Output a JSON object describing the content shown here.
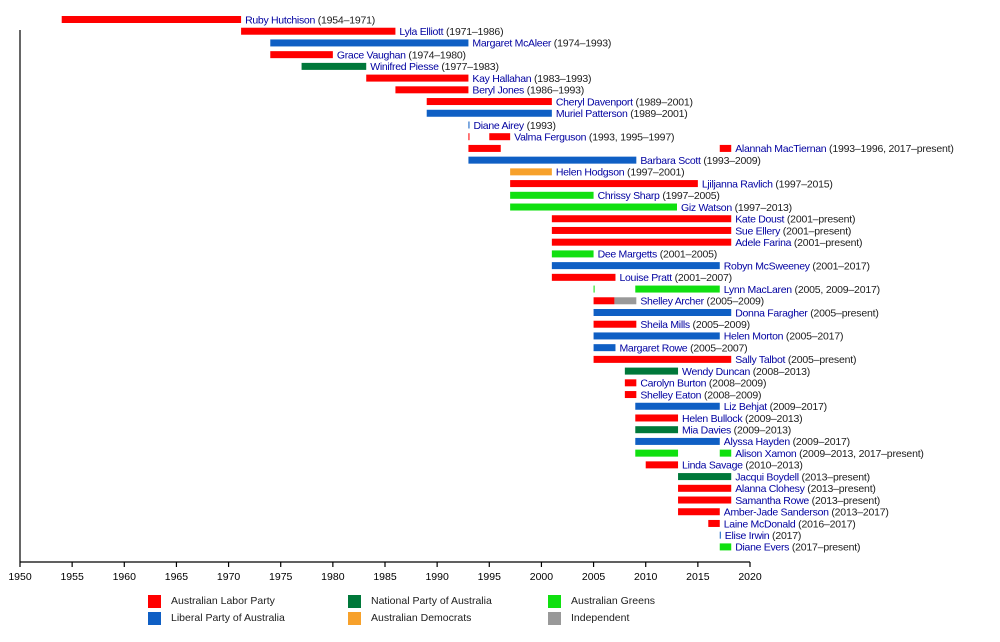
{
  "chart_data": {
    "type": "timeline",
    "title": "",
    "xlabel": "",
    "ylabel": "",
    "xlim": [
      1950,
      2020
    ],
    "present_year": 2018.2,
    "x_ticks": [
      1950,
      1955,
      1960,
      1965,
      1970,
      1975,
      1980,
      1985,
      1990,
      1995,
      2000,
      2005,
      2010,
      2015,
      2020
    ],
    "parties": {
      "ALP": {
        "name": "Australian Labor Party",
        "color": "#ff0000"
      },
      "LIB": {
        "name": "Liberal Party of Australia",
        "color": "#0f5fc4"
      },
      "NAT": {
        "name": "National Party of Australia",
        "color": "#00783a"
      },
      "DEM": {
        "name": "Australian Democrats",
        "color": "#f7a12b"
      },
      "GRN": {
        "name": "Australian Greens",
        "color": "#10e010"
      },
      "IND": {
        "name": "Independent",
        "color": "#999999"
      }
    },
    "legend": [
      {
        "party": "ALP",
        "label": "Australian Labor Party"
      },
      {
        "party": "LIB",
        "label": "Liberal Party of Australia"
      },
      {
        "party": "NAT",
        "label": "National Party of Australia"
      },
      {
        "party": "DEM",
        "label": "Australian Democrats"
      },
      {
        "party": "GRN",
        "label": "Australian Greens"
      },
      {
        "party": "IND",
        "label": "Independent"
      }
    ],
    "members": [
      {
        "name": "Ruby Hutchison",
        "years": "(1954–1971)",
        "segments": [
          {
            "start": 1954,
            "end": 1971.2,
            "party": "ALP"
          }
        ]
      },
      {
        "name": "Lyla Elliott",
        "years": "(1971–1986)",
        "segments": [
          {
            "start": 1971.2,
            "end": 1986,
            "party": "ALP"
          }
        ]
      },
      {
        "name": "Margaret McAleer",
        "years": "(1974–1993)",
        "segments": [
          {
            "start": 1974,
            "end": 1993,
            "party": "LIB"
          }
        ]
      },
      {
        "name": "Grace Vaughan",
        "years": "(1974–1980)",
        "segments": [
          {
            "start": 1974,
            "end": 1980,
            "party": "ALP"
          }
        ]
      },
      {
        "name": "Winifred Piesse",
        "years": "(1977–1983)",
        "segments": [
          {
            "start": 1977,
            "end": 1983.2,
            "party": "NAT"
          }
        ]
      },
      {
        "name": "Kay Hallahan",
        "years": "(1983–1993)",
        "segments": [
          {
            "start": 1983.2,
            "end": 1993,
            "party": "ALP"
          }
        ]
      },
      {
        "name": "Beryl Jones",
        "years": "(1986–1993)",
        "segments": [
          {
            "start": 1986,
            "end": 1993,
            "party": "ALP"
          }
        ]
      },
      {
        "name": "Cheryl Davenport",
        "years": "(1989–2001)",
        "segments": [
          {
            "start": 1989,
            "end": 2001,
            "party": "ALP"
          }
        ]
      },
      {
        "name": "Muriel Patterson",
        "years": "(1989–2001)",
        "segments": [
          {
            "start": 1989,
            "end": 2001,
            "party": "LIB"
          }
        ]
      },
      {
        "name": "Diane Airey",
        "years": "(1993)",
        "segments": [
          {
            "start": 1993,
            "end": 1993.1,
            "party": "LIB"
          }
        ]
      },
      {
        "name": "Valma Ferguson",
        "years": "(1993, 1995–1997)",
        "segments": [
          {
            "start": 1993,
            "end": 1993.1,
            "party": "ALP"
          },
          {
            "start": 1995,
            "end": 1997,
            "party": "ALP"
          }
        ]
      },
      {
        "name": "Alannah MacTiernan",
        "years": "(1993–1996, 2017–present)",
        "segments": [
          {
            "start": 1993,
            "end": 1996.1,
            "party": "ALP"
          },
          {
            "start": 2017.1,
            "end": 2018.2,
            "party": "ALP"
          }
        ]
      },
      {
        "name": "Barbara Scott",
        "years": "(1993–2009)",
        "segments": [
          {
            "start": 1993,
            "end": 2009.1,
            "party": "LIB"
          }
        ]
      },
      {
        "name": "Helen Hodgson",
        "years": "(1997–2001)",
        "segments": [
          {
            "start": 1997,
            "end": 2001,
            "party": "DEM"
          }
        ]
      },
      {
        "name": "Ljiljanna Ravlich",
        "years": "(1997–2015)",
        "segments": [
          {
            "start": 1997,
            "end": 2015,
            "party": "ALP"
          }
        ]
      },
      {
        "name": "Chrissy Sharp",
        "years": "(1997–2005)",
        "segments": [
          {
            "start": 1997,
            "end": 2005,
            "party": "GRN"
          }
        ]
      },
      {
        "name": "Giz Watson",
        "years": "(1997–2013)",
        "segments": [
          {
            "start": 1997,
            "end": 2013,
            "party": "GRN"
          }
        ]
      },
      {
        "name": "Kate Doust",
        "years": "(2001–present)",
        "segments": [
          {
            "start": 2001,
            "end": 2018.2,
            "party": "ALP"
          }
        ]
      },
      {
        "name": "Sue Ellery",
        "years": "(2001–present)",
        "segments": [
          {
            "start": 2001,
            "end": 2018.2,
            "party": "ALP"
          }
        ]
      },
      {
        "name": "Adele Farina",
        "years": "(2001–present)",
        "segments": [
          {
            "start": 2001,
            "end": 2018.2,
            "party": "ALP"
          }
        ]
      },
      {
        "name": "Dee Margetts",
        "years": "(2001–2005)",
        "segments": [
          {
            "start": 2001,
            "end": 2005,
            "party": "GRN"
          }
        ]
      },
      {
        "name": "Robyn McSweeney",
        "years": "(2001–2017)",
        "segments": [
          {
            "start": 2001,
            "end": 2017.1,
            "party": "LIB"
          }
        ]
      },
      {
        "name": "Louise Pratt",
        "years": "(2001–2007)",
        "segments": [
          {
            "start": 2001,
            "end": 2007.1,
            "party": "ALP"
          }
        ]
      },
      {
        "name": "Lynn MacLaren",
        "years": "(2005, 2009–2017)",
        "segments": [
          {
            "start": 2005,
            "end": 2005.1,
            "party": "GRN"
          },
          {
            "start": 2009,
            "end": 2017.1,
            "party": "GRN"
          }
        ]
      },
      {
        "name": "Shelley Archer",
        "years": "(2005–2009)",
        "segments": [
          {
            "start": 2005,
            "end": 2007,
            "party": "ALP"
          },
          {
            "start": 2007,
            "end": 2009.1,
            "party": "IND"
          }
        ]
      },
      {
        "name": "Donna Faragher",
        "years": "(2005–present)",
        "segments": [
          {
            "start": 2005,
            "end": 2018.2,
            "party": "LIB"
          }
        ]
      },
      {
        "name": "Sheila Mills",
        "years": "(2005–2009)",
        "segments": [
          {
            "start": 2005,
            "end": 2009.1,
            "party": "ALP"
          }
        ]
      },
      {
        "name": "Helen Morton",
        "years": "(2005–2017)",
        "segments": [
          {
            "start": 2005,
            "end": 2017.1,
            "party": "LIB"
          }
        ]
      },
      {
        "name": "Margaret Rowe",
        "years": "(2005–2007)",
        "segments": [
          {
            "start": 2005,
            "end": 2007.1,
            "party": "LIB"
          }
        ]
      },
      {
        "name": "Sally Talbot",
        "years": "(2005–present)",
        "segments": [
          {
            "start": 2005,
            "end": 2018.2,
            "party": "ALP"
          }
        ]
      },
      {
        "name": "Wendy Duncan",
        "years": "(2008–2013)",
        "segments": [
          {
            "start": 2008,
            "end": 2013.1,
            "party": "NAT"
          }
        ]
      },
      {
        "name": "Carolyn Burton",
        "years": "(2008–2009)",
        "segments": [
          {
            "start": 2008,
            "end": 2009.1,
            "party": "ALP"
          }
        ]
      },
      {
        "name": "Shelley Eaton",
        "years": "(2008–2009)",
        "segments": [
          {
            "start": 2008,
            "end": 2009.1,
            "party": "ALP"
          }
        ]
      },
      {
        "name": "Liz Behjat",
        "years": "(2009–2017)",
        "segments": [
          {
            "start": 2009,
            "end": 2017.1,
            "party": "LIB"
          }
        ]
      },
      {
        "name": "Helen Bullock",
        "years": "(2009–2013)",
        "segments": [
          {
            "start": 2009,
            "end": 2013.1,
            "party": "ALP"
          }
        ]
      },
      {
        "name": "Mia Davies",
        "years": "(2009–2013)",
        "segments": [
          {
            "start": 2009,
            "end": 2013.1,
            "party": "NAT"
          }
        ]
      },
      {
        "name": "Alyssa Hayden",
        "years": "(2009–2017)",
        "segments": [
          {
            "start": 2009,
            "end": 2017.1,
            "party": "LIB"
          }
        ]
      },
      {
        "name": "Alison Xamon",
        "years": "(2009–2013, 2017–present)",
        "segments": [
          {
            "start": 2009,
            "end": 2013.1,
            "party": "GRN"
          },
          {
            "start": 2017.1,
            "end": 2018.2,
            "party": "GRN"
          }
        ]
      },
      {
        "name": "Linda Savage",
        "years": "(2010–2013)",
        "segments": [
          {
            "start": 2010,
            "end": 2013.1,
            "party": "ALP"
          }
        ]
      },
      {
        "name": "Jacqui Boydell",
        "years": "(2013–present)",
        "segments": [
          {
            "start": 2013.1,
            "end": 2018.2,
            "party": "NAT"
          }
        ]
      },
      {
        "name": "Alanna Clohesy",
        "years": "(2013–present)",
        "segments": [
          {
            "start": 2013.1,
            "end": 2018.2,
            "party": "ALP"
          }
        ]
      },
      {
        "name": "Samantha Rowe",
        "years": "(2013–present)",
        "segments": [
          {
            "start": 2013.1,
            "end": 2018.2,
            "party": "ALP"
          }
        ]
      },
      {
        "name": "Amber-Jade Sanderson",
        "years": "(2013–2017)",
        "segments": [
          {
            "start": 2013.1,
            "end": 2017.1,
            "party": "ALP"
          }
        ]
      },
      {
        "name": "Laine McDonald",
        "years": "(2016–2017)",
        "segments": [
          {
            "start": 2016,
            "end": 2017.1,
            "party": "ALP"
          }
        ]
      },
      {
        "name": "Elise Irwin",
        "years": "(2017)",
        "segments": [
          {
            "start": 2017.1,
            "end": 2017.2,
            "party": "LIB"
          }
        ]
      },
      {
        "name": "Diane Evers",
        "years": "(2017–present)",
        "segments": [
          {
            "start": 2017.1,
            "end": 2018.2,
            "party": "GRN"
          }
        ]
      }
    ]
  }
}
